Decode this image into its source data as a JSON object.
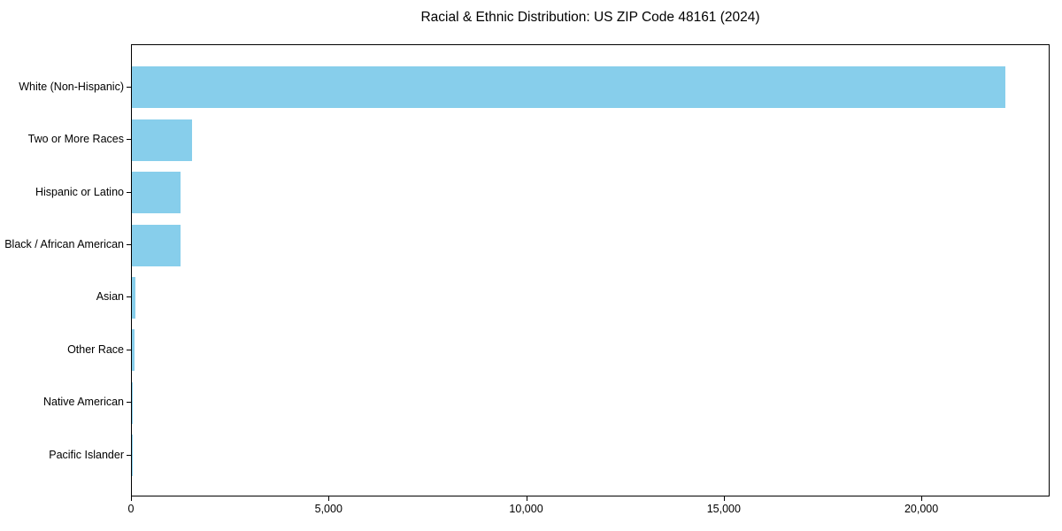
{
  "figure": {
    "background": "#ffffff",
    "axis_color": "#000000",
    "text_color": "#000000"
  },
  "chart_data": {
    "type": "bar",
    "orientation": "horizontal",
    "title": "Racial & Ethnic Distribution: US ZIP Code 48161 (2024)",
    "categories": [
      "White (Non-Hispanic)",
      "Two or More Races",
      "Hispanic or Latino",
      "Black / African American",
      "Asian",
      "Other Race",
      "Native American",
      "Pacific Islander"
    ],
    "values": [
      22140,
      1530,
      1240,
      1230,
      100,
      75,
      30,
      10
    ],
    "bar_color": "#87CEEB",
    "xlabel": "",
    "ylabel": "",
    "xlim": [
      0,
      23245
    ],
    "xticks": {
      "values": [
        0,
        5000,
        10000,
        15000,
        20000
      ],
      "labels": [
        "0",
        "5,000",
        "10,000",
        "15,000",
        "20,000"
      ]
    },
    "grid": false,
    "legend": false
  }
}
